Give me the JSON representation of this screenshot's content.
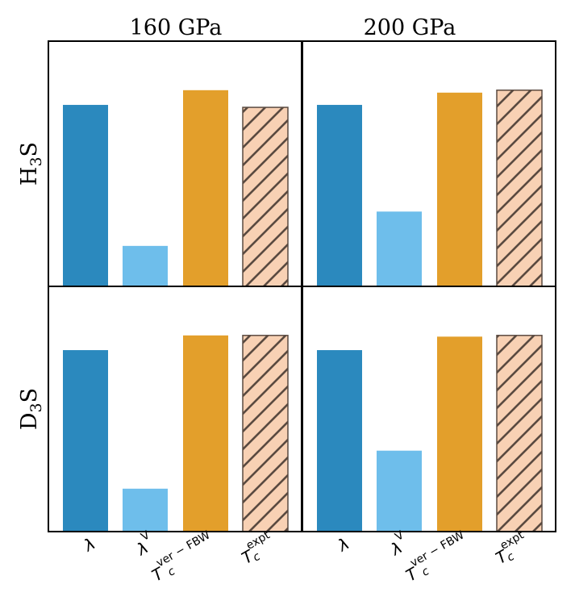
{
  "colors": {
    "lambda": "#2b89be",
    "lambda_v": "#6ebeeb",
    "tc_fbw": "#e39f2b",
    "tc_expt_fill": "#f8d1b4",
    "tc_expt_hatch": "#5a4a40",
    "frame": "#000000"
  },
  "chart_data": {
    "type": "bar",
    "column_titles": [
      "160 GPa",
      "200 GPa"
    ],
    "row_labels": [
      {
        "base": "H",
        "sub": "3",
        "tail": "S"
      },
      {
        "base": "D",
        "sub": "3",
        "tail": "S"
      }
    ],
    "categories": [
      {
        "main": "λ",
        "sup": "",
        "sub": ""
      },
      {
        "main": "λ",
        "sup": "V",
        "sub": ""
      },
      {
        "main": "T",
        "sup": "ver − FBW",
        "sub": "c"
      },
      {
        "main": "T",
        "sup": "expt",
        "sub": "c"
      }
    ],
    "ylim": [
      0,
      1
    ],
    "grid": false,
    "panels": [
      {
        "row": 0,
        "col": 0,
        "values": [
          0.74,
          0.165,
          0.8,
          0.73
        ]
      },
      {
        "row": 0,
        "col": 1,
        "values": [
          0.74,
          0.305,
          0.79,
          0.8
        ]
      },
      {
        "row": 1,
        "col": 0,
        "values": [
          0.74,
          0.175,
          0.8,
          0.8
        ]
      },
      {
        "row": 1,
        "col": 1,
        "values": [
          0.74,
          0.33,
          0.795,
          0.8
        ]
      }
    ]
  }
}
